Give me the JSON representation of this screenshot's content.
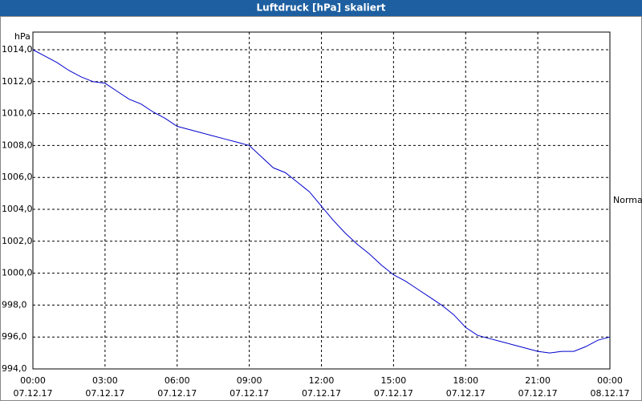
{
  "chart_data": {
    "type": "line",
    "title": "Luftdruck [hPa] skaliert",
    "y_unit": "hPa",
    "x": [
      0,
      0.5,
      1,
      1.5,
      2,
      2.5,
      3,
      3.5,
      4,
      4.5,
      5,
      5.5,
      6,
      6.5,
      7,
      7.5,
      8,
      8.5,
      9,
      9.5,
      10,
      10.5,
      11,
      11.5,
      12,
      12.5,
      13,
      13.5,
      14,
      14.5,
      15,
      15.5,
      16,
      16.5,
      17,
      17.5,
      18,
      18.5,
      19,
      19.5,
      20,
      20.5,
      21,
      21.5,
      22,
      22.5,
      23,
      23.5,
      24
    ],
    "series": [
      {
        "name": "Normal",
        "color": "#0000cc",
        "values": [
          1014.0,
          1013.6,
          1013.2,
          1012.7,
          1012.3,
          1012.0,
          1011.9,
          1011.4,
          1010.9,
          1010.6,
          1010.1,
          1009.7,
          1009.2,
          1009.0,
          1008.8,
          1008.6,
          1008.4,
          1008.2,
          1008.0,
          1007.3,
          1006.6,
          1006.3,
          1005.7,
          1005.1,
          1004.2,
          1003.3,
          1002.5,
          1001.8,
          1001.2,
          1000.5,
          999.9,
          999.5,
          999.0,
          998.5,
          998.0,
          997.4,
          996.6,
          996.1,
          995.9,
          995.7,
          995.5,
          995.3,
          995.1,
          995.0,
          995.1,
          995.1,
          995.4,
          995.8,
          996.0
        ]
      }
    ],
    "xlim": [
      0,
      24
    ],
    "xticks": [
      {
        "value": 0,
        "label": "00:00"
      },
      {
        "value": 3,
        "label": "03:00"
      },
      {
        "value": 6,
        "label": "06:00"
      },
      {
        "value": 9,
        "label": "09:00"
      },
      {
        "value": 12,
        "label": "12:00"
      },
      {
        "value": 15,
        "label": "15:00"
      },
      {
        "value": 18,
        "label": "18:00"
      },
      {
        "value": 21,
        "label": "21:00"
      },
      {
        "value": 24,
        "label": "00:00"
      }
    ],
    "xtick_dates": [
      "07.12.17",
      "07.12.17",
      "07.12.17",
      "07.12.17",
      "07.12.17",
      "07.12.17",
      "07.12.17",
      "07.12.17",
      "08.12.17"
    ],
    "ylim": [
      994,
      1014
    ],
    "yticks": [
      {
        "value": 994,
        "label": "994,0"
      },
      {
        "value": 996,
        "label": "996,0"
      },
      {
        "value": 998,
        "label": "998,0"
      },
      {
        "value": 1000,
        "label": "1000,0"
      },
      {
        "value": 1002,
        "label": "1002,0"
      },
      {
        "value": 1004,
        "label": "1004,0"
      },
      {
        "value": 1006,
        "label": "1006,0"
      },
      {
        "value": 1008,
        "label": "1008,0"
      },
      {
        "value": 1010,
        "label": "1010,0"
      },
      {
        "value": 1012,
        "label": "1012,0"
      },
      {
        "value": 1014,
        "label": "1014,0"
      }
    ],
    "grid": true
  }
}
